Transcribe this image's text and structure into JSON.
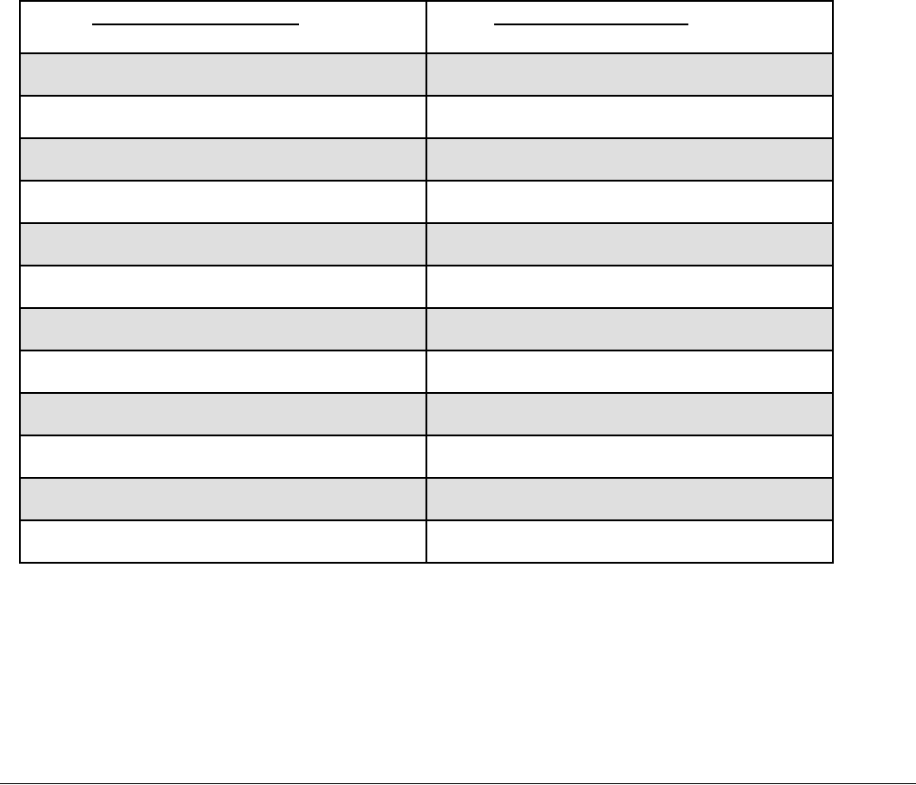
{
  "table": {
    "headers": [
      "",
      ""
    ],
    "rows": [
      [
        "",
        ""
      ],
      [
        "",
        ""
      ],
      [
        "",
        ""
      ],
      [
        "",
        ""
      ],
      [
        "",
        ""
      ],
      [
        "",
        ""
      ],
      [
        "",
        ""
      ],
      [
        "",
        ""
      ],
      [
        "",
        ""
      ],
      [
        "",
        ""
      ],
      [
        "",
        ""
      ],
      [
        "",
        ""
      ]
    ],
    "stripe_color": "#dfdfdf",
    "plain_color": "#ffffff",
    "border_color": "#000000"
  }
}
